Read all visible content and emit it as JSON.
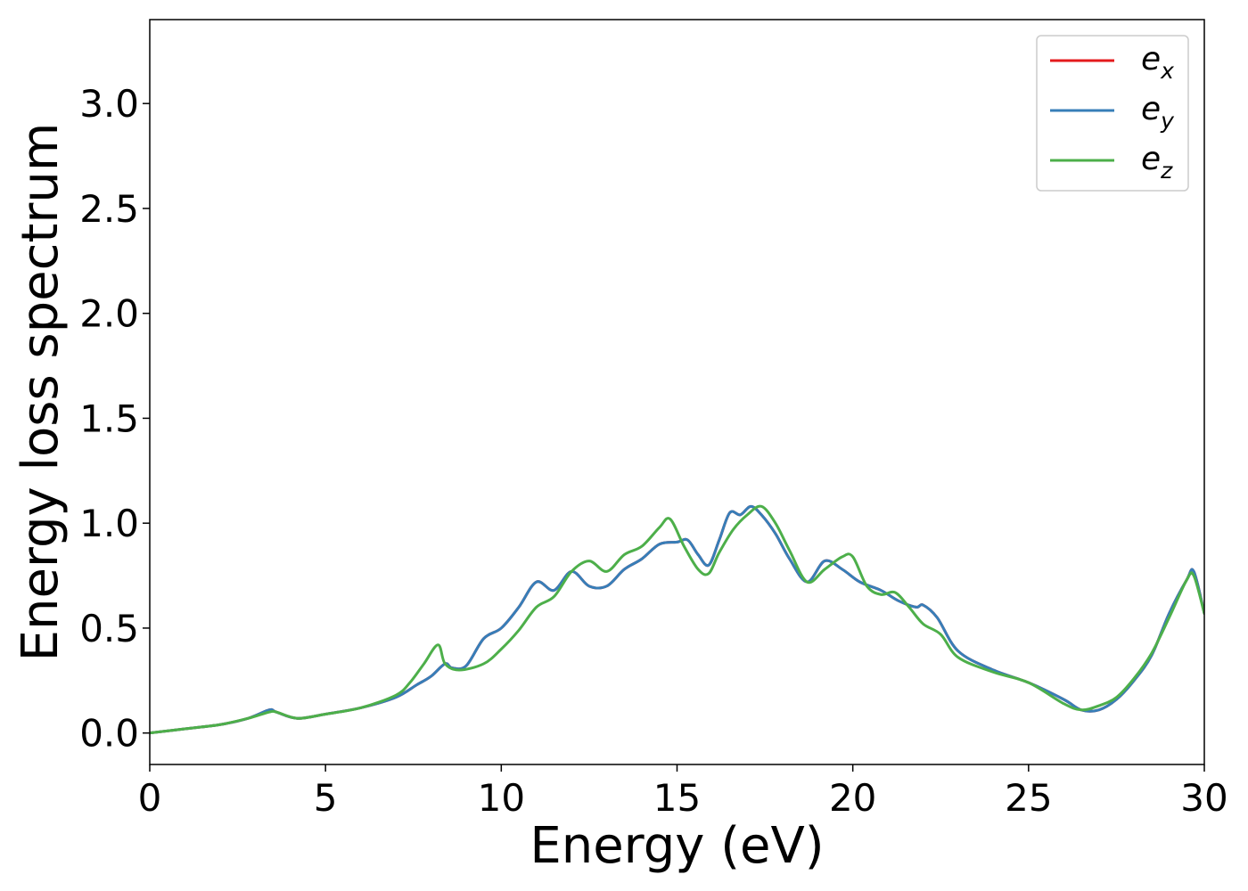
{
  "chart_data": {
    "type": "line",
    "title": "",
    "xlabel": "Energy (eV)",
    "ylabel": "Energy loss spectrum",
    "xlim": [
      0,
      30
    ],
    "ylim": [
      -0.15,
      3.4
    ],
    "xticks": [
      0,
      5,
      10,
      15,
      20,
      25,
      30
    ],
    "xtick_labels": [
      "0",
      "5",
      "10",
      "15",
      "20",
      "25",
      "30"
    ],
    "yticks": [
      0.0,
      0.5,
      1.0,
      1.5,
      2.0,
      2.5,
      3.0
    ],
    "ytick_labels": [
      "0.0",
      "0.5",
      "1.0",
      "1.5",
      "2.0",
      "2.5",
      "3.0"
    ],
    "grid": false,
    "legend_position": "top-right",
    "series": [
      {
        "name": "e_x",
        "legend_base": "e",
        "legend_sub": "x",
        "color": "#e41a1c",
        "x": [
          0,
          1,
          2,
          2.8,
          3.4,
          3.6,
          4.2,
          5,
          6,
          7,
          7.6,
          8.0,
          8.4,
          8.6,
          9.0,
          9.5,
          10,
          10.5,
          11,
          11.5,
          12,
          12.5,
          13,
          13.5,
          14,
          14.5,
          15,
          15.3,
          15.6,
          15.9,
          16.2,
          16.5,
          16.8,
          17.1,
          17.4,
          17.8,
          18.2,
          18.7,
          19.2,
          19.7,
          20.2,
          20.8,
          21.3,
          21.8,
          22.0,
          22.4,
          23.0,
          24.0,
          25.0,
          26.0,
          26.5,
          27.0,
          27.5,
          28.0,
          28.5,
          29.0,
          29.5,
          29.7,
          30.0
        ],
        "y": [
          0.0,
          0.02,
          0.04,
          0.07,
          0.11,
          0.1,
          0.07,
          0.09,
          0.12,
          0.17,
          0.23,
          0.27,
          0.33,
          0.31,
          0.32,
          0.45,
          0.5,
          0.6,
          0.72,
          0.68,
          0.77,
          0.7,
          0.7,
          0.78,
          0.83,
          0.9,
          0.91,
          0.92,
          0.85,
          0.8,
          0.92,
          1.05,
          1.04,
          1.08,
          1.04,
          0.95,
          0.83,
          0.72,
          0.82,
          0.78,
          0.72,
          0.68,
          0.63,
          0.6,
          0.61,
          0.55,
          0.39,
          0.3,
          0.24,
          0.16,
          0.11,
          0.11,
          0.16,
          0.25,
          0.37,
          0.57,
          0.73,
          0.77,
          0.57
        ]
      },
      {
        "name": "e_y",
        "legend_base": "e",
        "legend_sub": "y",
        "color": "#377eb8",
        "x": [
          0,
          1,
          2,
          2.8,
          3.4,
          3.6,
          4.2,
          5,
          6,
          7,
          7.6,
          8.0,
          8.4,
          8.6,
          9.0,
          9.5,
          10,
          10.5,
          11,
          11.5,
          12,
          12.5,
          13,
          13.5,
          14,
          14.5,
          15,
          15.3,
          15.6,
          15.9,
          16.2,
          16.5,
          16.8,
          17.1,
          17.4,
          17.8,
          18.2,
          18.7,
          19.2,
          19.7,
          20.2,
          20.8,
          21.3,
          21.8,
          22.0,
          22.4,
          23.0,
          24.0,
          25.0,
          26.0,
          26.5,
          27.0,
          27.5,
          28.0,
          28.5,
          29.0,
          29.5,
          29.7,
          30.0
        ],
        "y": [
          0.0,
          0.02,
          0.04,
          0.07,
          0.11,
          0.1,
          0.07,
          0.09,
          0.12,
          0.17,
          0.23,
          0.27,
          0.33,
          0.31,
          0.32,
          0.45,
          0.5,
          0.6,
          0.72,
          0.68,
          0.77,
          0.7,
          0.7,
          0.78,
          0.83,
          0.9,
          0.91,
          0.92,
          0.85,
          0.8,
          0.92,
          1.05,
          1.04,
          1.08,
          1.04,
          0.95,
          0.83,
          0.72,
          0.82,
          0.78,
          0.72,
          0.68,
          0.63,
          0.6,
          0.61,
          0.55,
          0.39,
          0.3,
          0.24,
          0.16,
          0.11,
          0.11,
          0.16,
          0.25,
          0.37,
          0.57,
          0.73,
          0.77,
          0.57
        ]
      },
      {
        "name": "e_z",
        "legend_base": "e",
        "legend_sub": "z",
        "color": "#4daf4a",
        "x": [
          0,
          1,
          2,
          2.8,
          3.4,
          3.6,
          4.2,
          5,
          6,
          7,
          7.4,
          7.8,
          8.2,
          8.4,
          8.8,
          9.5,
          10,
          10.5,
          11,
          11.5,
          12,
          12.5,
          13,
          13.5,
          14,
          14.5,
          14.8,
          15.2,
          15.6,
          15.9,
          16.2,
          16.6,
          17.0,
          17.4,
          17.8,
          18.2,
          18.7,
          19.2,
          19.7,
          20.0,
          20.4,
          20.8,
          21.2,
          21.6,
          22.0,
          22.5,
          23.0,
          24.0,
          25.0,
          26.0,
          26.5,
          27.0,
          27.5,
          28.0,
          28.5,
          29.0,
          29.5,
          29.7,
          30.0
        ],
        "y": [
          0.0,
          0.02,
          0.04,
          0.07,
          0.1,
          0.1,
          0.07,
          0.09,
          0.12,
          0.18,
          0.24,
          0.33,
          0.42,
          0.33,
          0.3,
          0.33,
          0.4,
          0.49,
          0.6,
          0.65,
          0.77,
          0.82,
          0.77,
          0.85,
          0.89,
          0.98,
          1.02,
          0.89,
          0.78,
          0.76,
          0.86,
          0.97,
          1.04,
          1.08,
          1.0,
          0.87,
          0.72,
          0.78,
          0.84,
          0.84,
          0.7,
          0.66,
          0.67,
          0.6,
          0.52,
          0.47,
          0.36,
          0.29,
          0.24,
          0.14,
          0.11,
          0.13,
          0.17,
          0.26,
          0.38,
          0.55,
          0.73,
          0.75,
          0.57
        ]
      }
    ]
  }
}
